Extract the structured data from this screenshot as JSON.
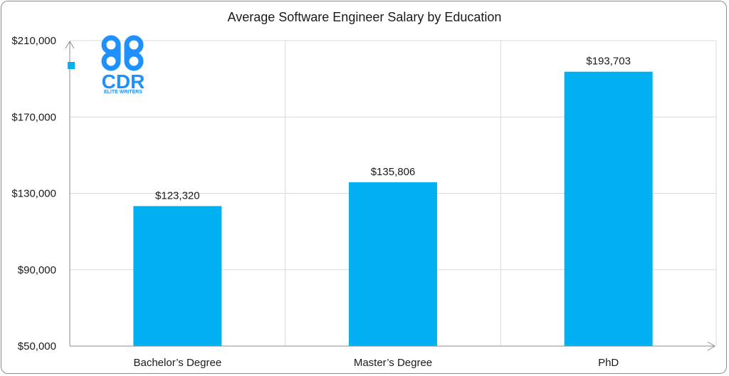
{
  "chart_data": {
    "type": "bar",
    "title": "Average Software Engineer Salary by Education",
    "categories": [
      "Bachelor’s Degree",
      "Master’s Degree",
      "PhD"
    ],
    "values": [
      123320,
      135806,
      193703
    ],
    "data_labels": [
      "$123,320",
      "$135,806",
      "$193,703"
    ],
    "y_ticks": [
      50000,
      90000,
      130000,
      170000,
      210000
    ],
    "y_tick_labels": [
      "$50,000",
      "$90,000",
      "$130,000",
      "$170,000",
      "$210,000"
    ],
    "ylim": [
      50000,
      210000
    ],
    "grid": true,
    "bar_color": "#00B0F0",
    "xlabel": "",
    "ylabel": ""
  },
  "logo": {
    "mark": "CDR",
    "tagline": "ELITE WRITERS",
    "color": "#1E90FF"
  }
}
